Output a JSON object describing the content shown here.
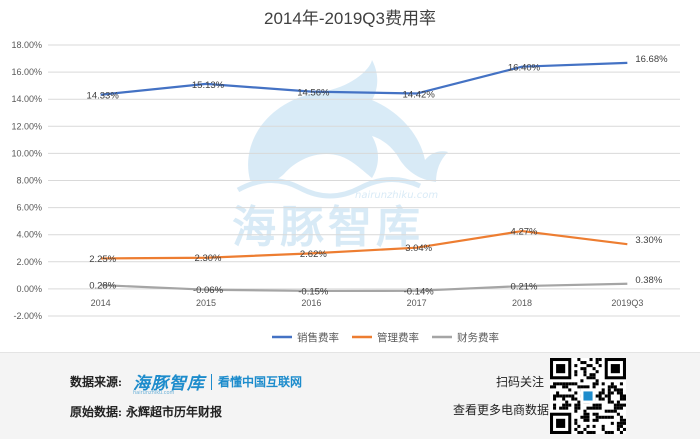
{
  "chart_data": {
    "type": "line",
    "title": "2014年-2019Q3费用率",
    "categories": [
      "2014",
      "2015",
      "2016",
      "2017",
      "2018",
      "2019Q3"
    ],
    "y_axis": {
      "min": -2,
      "max": 18,
      "step": 2,
      "tick_labels": [
        "-2.00%",
        "0.00%",
        "2.00%",
        "4.00%",
        "6.00%",
        "8.00%",
        "10.00%",
        "12.00%",
        "14.00%",
        "16.00%",
        "18.00%"
      ]
    },
    "grid": true,
    "legend_position": "bottom",
    "series": [
      {
        "name": "销售费率",
        "color": "#4472c4",
        "values": [
          14.33,
          15.13,
          14.56,
          14.42,
          16.4,
          16.68
        ],
        "labels": [
          "14.33%",
          "15.13%",
          "14.56%",
          "14.42%",
          "16.40%",
          "16.68%"
        ]
      },
      {
        "name": "管理费率",
        "color": "#ed7d31",
        "values": [
          2.25,
          2.3,
          2.62,
          3.04,
          4.27,
          3.3
        ],
        "labels": [
          "2.25%",
          "2.30%",
          "2.62%",
          "3.04%",
          "4.27%",
          "3.30%"
        ]
      },
      {
        "name": "财务费率",
        "color": "#a5a5a5",
        "values": [
          0.28,
          -0.06,
          -0.15,
          -0.14,
          0.21,
          0.38
        ],
        "labels": [
          "0.28%",
          "-0.06%",
          "-0.15%",
          "-0.14%",
          "0.21%",
          "0.38%"
        ]
      }
    ]
  },
  "watermark": {
    "url": "hairunzhiku.com",
    "name": "海豚智库"
  },
  "footer": {
    "source_label": "数据来源:",
    "logo_name": "海豚智库",
    "logo_slogan": "看懂中国互联网",
    "logo_url": "hairunzhiku.com",
    "original_label": "原始数据:",
    "original_value": "永辉超市历年财报",
    "scan_label": "扫码关注",
    "more_label": "查看更多电商数据"
  }
}
